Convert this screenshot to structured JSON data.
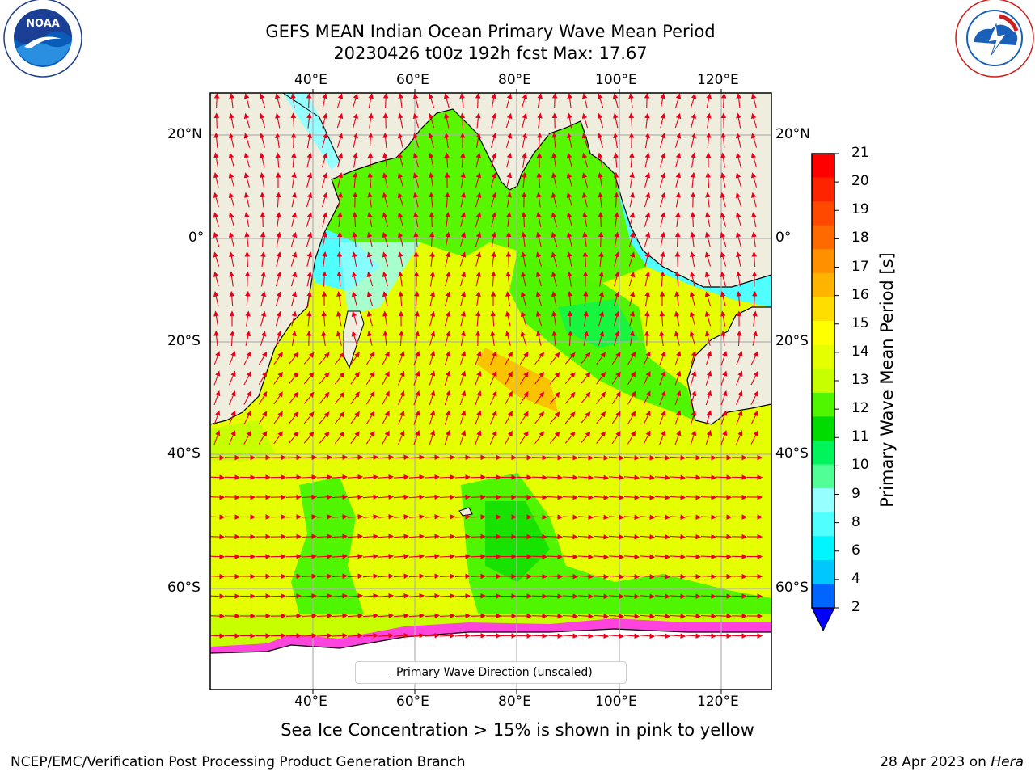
{
  "header": {
    "title_line1": "GEFS MEAN Indian Ocean Primary Wave Mean Period",
    "title_line2": "20230426 t00z 192h fcst   Max: 17.67"
  },
  "logos": {
    "left": "NOAA",
    "right": "NATIONAL WEATHER SERVICE"
  },
  "map": {
    "lon_ticks_top": [
      "40°E",
      "60°E",
      "80°E",
      "100°E",
      "120°E"
    ],
    "lon_ticks_bottom": [
      "40°E",
      "60°E",
      "80°E",
      "100°E",
      "120°E"
    ],
    "lat_ticks_left": [
      "20°N",
      "0°",
      "20°S",
      "40°S",
      "60°S"
    ],
    "lat_ticks_right": [
      "20°N",
      "0°",
      "20°S",
      "40°S",
      "60°S"
    ],
    "legend_label": "Primary Wave Direction (unscaled)",
    "land_color": "#efedde",
    "vector_color": "#e8001a"
  },
  "colorbar": {
    "label": "Primary Wave Mean Period [s]",
    "ticks": [
      "21",
      "20",
      "19",
      "18",
      "17",
      "16",
      "15",
      "14",
      "13",
      "12",
      "11",
      "10",
      "9",
      "8",
      "6",
      "4",
      "2"
    ],
    "colors_top_to_bottom": [
      "#ff0000",
      "#ff2400",
      "#ff4800",
      "#ff6a00",
      "#ff9000",
      "#ffb400",
      "#ffdd00",
      "#ffff00",
      "#e6ff00",
      "#c8ff00",
      "#50f500",
      "#00dc00",
      "#00f55a",
      "#50ff96",
      "#96ffff",
      "#50ffff",
      "#00f5ff",
      "#00c8ff",
      "#0064ff"
    ],
    "extend_color": "#0000ff"
  },
  "caption": "Sea Ice Concentration > 15% is shown in pink to yellow",
  "footer": {
    "left": "NCEP/EMC/Verification Post Processing Product Generation Branch",
    "date": "28 Apr 2023 on ",
    "host": "Hera"
  }
}
